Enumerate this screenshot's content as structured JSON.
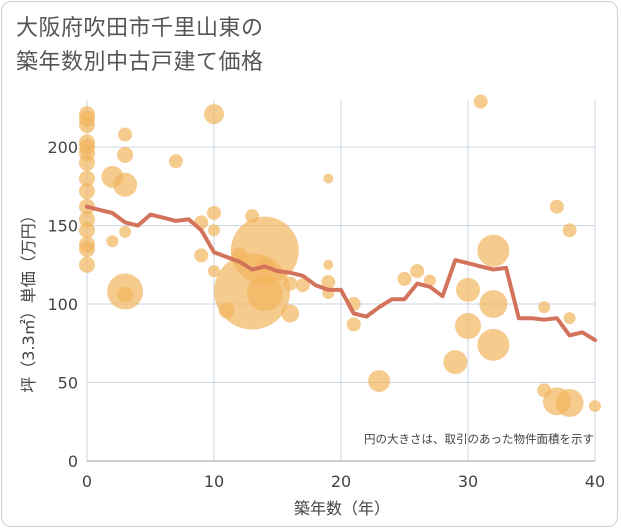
{
  "title_lines": [
    "大阪府吹田市千里山東の",
    "築年数別中古戸建て価格"
  ],
  "colors": {
    "bubble": "#f2b55e",
    "line": "#d4735c",
    "grid": "#c8d6e2",
    "text": "#444444"
  },
  "chart_data": {
    "type": "scatter",
    "title": "大阪府吹田市千里山東の築年数別中古戸建て価格",
    "xlabel": "築年数（年）",
    "ylabel": "坪（3.3㎡）単価（万円）",
    "xlim": [
      0,
      40
    ],
    "ylim": [
      0,
      230
    ],
    "x_ticks": [
      "0",
      "10",
      "20",
      "30",
      "40"
    ],
    "y_ticks": [
      "0",
      "50",
      "100",
      "150",
      "200"
    ],
    "grid": true,
    "note": "円の大きさは、取引のあった物件面積を示す",
    "scatter_series": {
      "name": "取引",
      "points": [
        {
          "x": 0,
          "y": 221,
          "s": 8
        },
        {
          "x": 0,
          "y": 218,
          "s": 8
        },
        {
          "x": 0,
          "y": 214,
          "s": 8
        },
        {
          "x": 0,
          "y": 203,
          "s": 8
        },
        {
          "x": 0,
          "y": 200,
          "s": 8
        },
        {
          "x": 0,
          "y": 196,
          "s": 8
        },
        {
          "x": 0,
          "y": 190,
          "s": 8
        },
        {
          "x": 0,
          "y": 180,
          "s": 8
        },
        {
          "x": 0,
          "y": 172,
          "s": 8
        },
        {
          "x": 0,
          "y": 162,
          "s": 8
        },
        {
          "x": 0,
          "y": 154,
          "s": 8
        },
        {
          "x": 0,
          "y": 147,
          "s": 8
        },
        {
          "x": 0,
          "y": 138,
          "s": 8
        },
        {
          "x": 0,
          "y": 135,
          "s": 8
        },
        {
          "x": 0,
          "y": 125,
          "s": 8
        },
        {
          "x": 2,
          "y": 181,
          "s": 11
        },
        {
          "x": 2,
          "y": 140,
          "s": 6
        },
        {
          "x": 3,
          "y": 208,
          "s": 7
        },
        {
          "x": 3,
          "y": 195,
          "s": 8
        },
        {
          "x": 3,
          "y": 176,
          "s": 12
        },
        {
          "x": 3,
          "y": 146,
          "s": 6
        },
        {
          "x": 3,
          "y": 108,
          "s": 18
        },
        {
          "x": 3,
          "y": 106,
          "s": 8
        },
        {
          "x": 7,
          "y": 191,
          "s": 7
        },
        {
          "x": 9,
          "y": 152,
          "s": 7
        },
        {
          "x": 9,
          "y": 131,
          "s": 7
        },
        {
          "x": 10,
          "y": 221,
          "s": 10
        },
        {
          "x": 10,
          "y": 158,
          "s": 7
        },
        {
          "x": 10,
          "y": 147,
          "s": 6
        },
        {
          "x": 10,
          "y": 121,
          "s": 6
        },
        {
          "x": 11,
          "y": 96,
          "s": 8
        },
        {
          "x": 12,
          "y": 131,
          "s": 8
        },
        {
          "x": 13,
          "y": 156,
          "s": 7
        },
        {
          "x": 13,
          "y": 108,
          "s": 38
        },
        {
          "x": 14,
          "y": 134,
          "s": 34
        },
        {
          "x": 14,
          "y": 125,
          "s": 8
        },
        {
          "x": 14,
          "y": 107,
          "s": 18
        },
        {
          "x": 16,
          "y": 113,
          "s": 7
        },
        {
          "x": 16,
          "y": 94,
          "s": 9
        },
        {
          "x": 17,
          "y": 112,
          "s": 7
        },
        {
          "x": 19,
          "y": 180,
          "s": 5
        },
        {
          "x": 19,
          "y": 125,
          "s": 5
        },
        {
          "x": 19,
          "y": 114,
          "s": 7
        },
        {
          "x": 19,
          "y": 107,
          "s": 6
        },
        {
          "x": 21,
          "y": 100,
          "s": 7
        },
        {
          "x": 21,
          "y": 87,
          "s": 7
        },
        {
          "x": 23,
          "y": 51,
          "s": 11
        },
        {
          "x": 25,
          "y": 116,
          "s": 7
        },
        {
          "x": 26,
          "y": 121,
          "s": 7
        },
        {
          "x": 27,
          "y": 115,
          "s": 6
        },
        {
          "x": 29,
          "y": 63,
          "s": 12
        },
        {
          "x": 30,
          "y": 109,
          "s": 12
        },
        {
          "x": 30,
          "y": 86,
          "s": 13
        },
        {
          "x": 31,
          "y": 229,
          "s": 7
        },
        {
          "x": 32,
          "y": 134,
          "s": 16
        },
        {
          "x": 32,
          "y": 100,
          "s": 14
        },
        {
          "x": 32,
          "y": 74,
          "s": 16
        },
        {
          "x": 36,
          "y": 98,
          "s": 6
        },
        {
          "x": 36,
          "y": 45,
          "s": 7
        },
        {
          "x": 37,
          "y": 162,
          "s": 7
        },
        {
          "x": 37,
          "y": 38,
          "s": 14
        },
        {
          "x": 38,
          "y": 147,
          "s": 7
        },
        {
          "x": 38,
          "y": 91,
          "s": 6
        },
        {
          "x": 38,
          "y": 37,
          "s": 14
        },
        {
          "x": 40,
          "y": 35,
          "s": 6
        }
      ]
    },
    "line_series": {
      "name": "平均",
      "x": [
        0,
        1,
        2,
        3,
        4,
        5,
        6,
        7,
        8,
        9,
        10,
        11,
        12,
        13,
        14,
        15,
        16,
        17,
        18,
        19,
        20,
        21,
        22,
        23,
        24,
        25,
        26,
        27,
        28,
        29,
        30,
        31,
        32,
        33,
        34,
        35,
        36,
        37,
        38,
        39,
        40
      ],
      "y": [
        162,
        160,
        158,
        152,
        150,
        157,
        155,
        153,
        154,
        147,
        133,
        130,
        127,
        122,
        124,
        121,
        120,
        118,
        112,
        109,
        109,
        94,
        92,
        98,
        103,
        103,
        113,
        111,
        105,
        128,
        126,
        124,
        122,
        123,
        91,
        91,
        90,
        91,
        80,
        82,
        77
      ]
    }
  }
}
